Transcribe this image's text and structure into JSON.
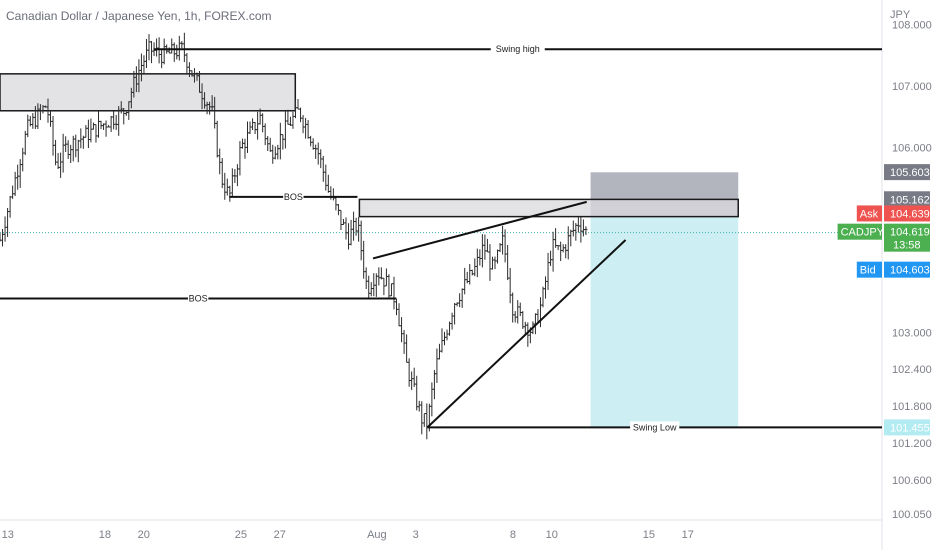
{
  "title": "Canadian Dollar / Japanese Yen, 1h, FOREX.com",
  "colors": {
    "up": "#26a69a",
    "down": "#ef5350",
    "bar": "#2b2b2b",
    "zone": "#d9dade",
    "stop": "#b2b5be",
    "target": "#cdeff4",
    "ask": "#ef5350",
    "bid": "#2196f3",
    "price": "#4caf50",
    "neutral": "#787b86",
    "target_tag": "#b2ebf2"
  },
  "chart_data": {
    "type": "ohlc",
    "currency": "JPY",
    "ylim": [
      99.95,
      108.4
    ],
    "yticks": [
      "108.000",
      "107.000",
      "106.000",
      "103.000",
      "102.400",
      "101.800",
      "101.200",
      "100.600",
      "100.050"
    ],
    "yticks_values": [
      108.0,
      107.0,
      106.0,
      103.0,
      102.4,
      101.8,
      101.2,
      100.6,
      100.05
    ],
    "xticks": [
      "13",
      "18",
      "20",
      "25",
      "27",
      "Aug",
      "3",
      "8",
      "10",
      "15",
      "17"
    ],
    "xticks_days": [
      13,
      18,
      20,
      25,
      27,
      32,
      34,
      39,
      41,
      46,
      48
    ],
    "x_range_days": [
      12.6,
      58.0
    ],
    "price_path": [
      [
        12.6,
        104.5
      ],
      [
        13.0,
        105.0
      ],
      [
        14.0,
        106.3
      ],
      [
        15.0,
        106.7
      ],
      [
        15.5,
        105.7
      ],
      [
        16.0,
        106.0
      ],
      [
        17.0,
        106.2
      ],
      [
        18.0,
        106.4
      ],
      [
        19.0,
        106.6
      ],
      [
        19.8,
        107.3
      ],
      [
        20.3,
        107.6
      ],
      [
        21.0,
        107.5
      ],
      [
        22.0,
        107.6
      ],
      [
        22.5,
        107.2
      ],
      [
        23.5,
        106.6
      ],
      [
        24.0,
        105.5
      ],
      [
        24.4,
        105.2
      ],
      [
        25.0,
        106.0
      ],
      [
        26.0,
        106.5
      ],
      [
        26.5,
        105.9
      ],
      [
        27.5,
        106.4
      ],
      [
        28.0,
        106.6
      ],
      [
        29.0,
        105.9
      ],
      [
        29.5,
        105.3
      ],
      [
        30.5,
        104.55
      ],
      [
        31.0,
        104.75
      ],
      [
        31.5,
        103.7
      ],
      [
        32.0,
        104.0
      ],
      [
        32.5,
        103.8
      ],
      [
        33.0,
        103.5
      ],
      [
        33.5,
        102.5
      ],
      [
        34.3,
        101.6
      ],
      [
        34.6,
        101.5
      ],
      [
        35.0,
        102.4
      ],
      [
        36.0,
        103.5
      ],
      [
        37.0,
        104.0
      ],
      [
        37.5,
        104.4
      ],
      [
        38.0,
        104.0
      ],
      [
        38.5,
        104.5
      ],
      [
        39.0,
        103.4
      ],
      [
        40.0,
        103.0
      ],
      [
        40.5,
        103.5
      ],
      [
        41.0,
        104.4
      ],
      [
        41.5,
        104.3
      ],
      [
        42.0,
        104.6
      ],
      [
        42.4,
        104.8
      ],
      [
        42.8,
        104.62
      ]
    ],
    "zones": [
      {
        "from_day": 12.6,
        "to_day": 27.8,
        "top": 107.2,
        "bottom": 106.6
      },
      {
        "from_day": 31.1,
        "to_day": 50.6,
        "top": 105.16,
        "bottom": 104.88
      }
    ],
    "levels": [
      {
        "label": "Swing high",
        "from_day": 20.5,
        "to_day": 58.0,
        "value": 107.6
      },
      {
        "label": "BOS",
        "from_day": 24.4,
        "to_day": 31.0,
        "value": 105.2
      },
      {
        "label": "BOS",
        "from_day": 12.6,
        "to_day": 33.0,
        "value": 103.55
      },
      {
        "label": "Swing Low",
        "from_day": 34.6,
        "to_day": 58.0,
        "value": 101.455
      }
    ],
    "trendlines": [
      {
        "from": [
          31.8,
          104.2
        ],
        "to": [
          42.8,
          105.12
        ]
      },
      {
        "from": [
          34.6,
          101.455
        ],
        "to": [
          44.8,
          104.5
        ]
      }
    ],
    "position": {
      "from_day": 43.0,
      "to_day": 50.6,
      "entry": 104.88,
      "stop": 105.6,
      "target": 101.455
    },
    "price_tags": [
      {
        "label": "",
        "value": "105.603",
        "price": 105.603,
        "kind": "stop"
      },
      {
        "label": "",
        "value": "105.162",
        "price": 105.162,
        "kind": "entry"
      },
      {
        "label": "Ask",
        "value": "104.639",
        "price": 104.639,
        "kind": "ask"
      },
      {
        "label": "CADJPY",
        "value": "104.619",
        "price": 104.619,
        "kind": "price",
        "sub": "13:58"
      },
      {
        "label": "Bid",
        "value": "104.603",
        "price": 104.603,
        "kind": "bid"
      },
      {
        "label": "",
        "value": "101.455",
        "price": 101.455,
        "kind": "target"
      }
    ]
  }
}
